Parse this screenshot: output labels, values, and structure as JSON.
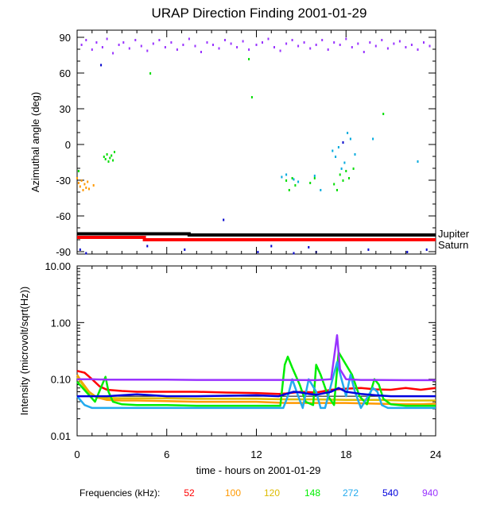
{
  "chart_data": [
    {
      "type": "scatter",
      "title": "URAP Direction Finding  2001-01-29",
      "ylabel": "Azimuthal angle (deg)",
      "xlim": [
        0,
        24
      ],
      "ylim": [
        -92,
        96
      ],
      "yticks": [
        "90",
        "60",
        "30",
        "0",
        "-30",
        "-60",
        "-90"
      ],
      "ytick_values": [
        90,
        60,
        30,
        0,
        -30,
        -60,
        -90
      ],
      "reference_lines": [
        {
          "name": "Jupiter",
          "color": "#000000",
          "x": [
            0,
            7.5,
            7.5,
            24
          ],
          "y": [
            -75,
            -75,
            -76,
            -76
          ]
        },
        {
          "name": "Saturn",
          "color": "#ff0000",
          "x": [
            0,
            4.5,
            4.5,
            24
          ],
          "y": [
            -78,
            -78,
            -80,
            -80
          ]
        }
      ],
      "series": [
        {
          "color": "#9933ff",
          "x": [
            0.3,
            0.6,
            1.0,
            1.3,
            1.7,
            2.0,
            2.4,
            2.8,
            3.1,
            3.5,
            3.9,
            4.3,
            4.7,
            5.1,
            5.5,
            5.9,
            6.3,
            6.7,
            7.1,
            7.5,
            7.9,
            8.3,
            8.7,
            9.1,
            9.5,
            9.9,
            10.3,
            10.7,
            11.1,
            11.5,
            12.0,
            12.4,
            12.8,
            13.2,
            13.6,
            14.0,
            14.4,
            14.8,
            15.2,
            15.6,
            16.0,
            16.4,
            16.8,
            17.2,
            17.6,
            18.0,
            18.4,
            18.8,
            19.2,
            19.6,
            20.0,
            20.4,
            20.8,
            21.2,
            21.6,
            22.0,
            22.4,
            22.8,
            23.2,
            23.6
          ],
          "y": [
            84,
            88,
            80,
            86,
            82,
            89,
            77,
            84,
            86,
            81,
            88,
            83,
            79,
            85,
            88,
            82,
            86,
            80,
            84,
            89,
            83,
            78,
            86,
            84,
            81,
            88,
            85,
            82,
            87,
            80,
            84,
            86,
            89,
            82,
            79,
            85,
            88,
            83,
            86,
            81,
            84,
            88,
            80,
            86,
            84,
            89,
            82,
            85,
            78,
            86,
            83,
            88,
            81,
            85,
            87,
            82,
            84,
            80,
            86,
            83
          ]
        },
        {
          "color": "#ff9900",
          "x": [
            0.0,
            0.1,
            0.2,
            0.3,
            0.4,
            0.5,
            0.6,
            0.7,
            0.8,
            1.1
          ],
          "y": [
            -28,
            -32,
            -35,
            -30,
            -38,
            -33,
            -36,
            -31,
            -37,
            -34
          ]
        },
        {
          "color": "#00dd00",
          "x": [
            0.1,
            1.8,
            1.9,
            2.0,
            2.1,
            2.2,
            2.3,
            2.4,
            2.5,
            4.9,
            11.5,
            11.7,
            14.0,
            14.2,
            14.4,
            14.6,
            15.6,
            15.9,
            17.2,
            17.4,
            17.6,
            17.8,
            18.0,
            18.2,
            18.5,
            20.5
          ],
          "y": [
            -22,
            -10,
            -12,
            -8,
            -14,
            -11,
            -9,
            -13,
            -6,
            60,
            72,
            40,
            -30,
            -38,
            -28,
            -34,
            -32,
            -28,
            -33,
            -38,
            -25,
            -30,
            -22,
            -28,
            -20,
            26
          ]
        },
        {
          "color": "#00aadd",
          "x": [
            13.7,
            14.0,
            14.5,
            14.8,
            15.9,
            16.3,
            17.1,
            17.3,
            17.5,
            17.7,
            17.9,
            18.1,
            18.3,
            18.6,
            19.8,
            22.8
          ],
          "y": [
            -27,
            -25,
            -29,
            -31,
            -26,
            -38,
            -5,
            -10,
            -2,
            -20,
            -15,
            10,
            5,
            -8,
            5,
            -14
          ]
        },
        {
          "color": "#0000cc",
          "x": [
            0.2,
            0.6,
            1.6,
            4.7,
            7.2,
            9.8,
            12.1,
            13.0,
            14.5,
            15.5,
            16.0,
            17.8,
            19.5,
            22.1,
            23.4
          ],
          "y": [
            -88,
            -91,
            67,
            -85,
            -88,
            -63,
            -90,
            -85,
            -91,
            -86,
            -90,
            2,
            -88,
            -90,
            -88
          ]
        }
      ]
    },
    {
      "type": "line",
      "ylabel": "Intensity (microvolt/sqrt(Hz))",
      "xlabel": "time - hours on 2001-01-29",
      "xlim": [
        0,
        24
      ],
      "ylim_log": [
        0.01,
        10
      ],
      "yticks": [
        "10.00",
        "1.00",
        "0.10",
        "0.01"
      ],
      "ytick_values": [
        10,
        1,
        0.1,
        0.01
      ],
      "xticks": [
        "0",
        "6",
        "12",
        "18",
        "24"
      ],
      "xtick_values": [
        0,
        6,
        12,
        18,
        24
      ],
      "reference_level": 0.05,
      "series": [
        {
          "name": "52",
          "color": "#ff0000",
          "x": [
            0,
            0.5,
            1,
            1.5,
            2,
            3,
            4,
            6,
            8,
            10,
            12,
            13.5,
            14,
            14.5,
            15,
            16,
            17,
            18,
            19,
            20,
            21,
            22,
            23,
            24
          ],
          "y": [
            0.14,
            0.13,
            0.1,
            0.075,
            0.065,
            0.062,
            0.06,
            0.06,
            0.06,
            0.058,
            0.057,
            0.055,
            0.056,
            0.058,
            0.06,
            0.058,
            0.065,
            0.068,
            0.07,
            0.066,
            0.065,
            0.07,
            0.065,
            0.07
          ]
        },
        {
          "name": "100",
          "color": "#ff9900",
          "x": [
            0,
            0.3,
            0.8,
            1.3,
            2,
            3,
            4,
            6,
            8,
            10,
            12,
            14,
            16,
            18,
            20,
            22,
            23,
            24
          ],
          "y": [
            0.12,
            0.09,
            0.06,
            0.048,
            0.043,
            0.042,
            0.042,
            0.041,
            0.04,
            0.04,
            0.04,
            0.038,
            0.038,
            0.038,
            0.037,
            0.036,
            0.036,
            0.037
          ]
        },
        {
          "name": "120",
          "color": "#ddbb00",
          "x": [
            0,
            0.3,
            0.7,
            1.2,
            1.8,
            3,
            4,
            6,
            8,
            10,
            12,
            14,
            16,
            18,
            20,
            22,
            24
          ],
          "y": [
            0.11,
            0.085,
            0.06,
            0.05,
            0.047,
            0.046,
            0.046,
            0.046,
            0.045,
            0.045,
            0.045,
            0.044,
            0.044,
            0.043,
            0.043,
            0.042,
            0.042
          ]
        },
        {
          "name": "148",
          "color": "#00ee00",
          "x": [
            0,
            0.6,
            1.2,
            1.9,
            2.1,
            2.4,
            3,
            4,
            6,
            8,
            10,
            12,
            13.6,
            13.9,
            14.1,
            14.4,
            14.9,
            15.3,
            15.8,
            16.0,
            16.3,
            16.8,
            17.2,
            17.5,
            18.0,
            18.4,
            18.9,
            19.4,
            19.9,
            20.2,
            20.5,
            21,
            22,
            23,
            24
          ],
          "y": [
            0.09,
            0.06,
            0.04,
            0.11,
            0.06,
            0.04,
            0.036,
            0.035,
            0.035,
            0.034,
            0.034,
            0.034,
            0.034,
            0.18,
            0.25,
            0.16,
            0.08,
            0.04,
            0.035,
            0.18,
            0.12,
            0.05,
            0.035,
            0.3,
            0.18,
            0.12,
            0.05,
            0.036,
            0.1,
            0.08,
            0.045,
            0.036,
            0.034,
            0.034,
            0.034
          ]
        },
        {
          "name": "272",
          "color": "#22aaee",
          "x": [
            0,
            0.5,
            1,
            2,
            3,
            4,
            6,
            8,
            10,
            12,
            13.8,
            14.1,
            14.4,
            14.8,
            15.1,
            15.5,
            16.0,
            16.3,
            16.6,
            17.1,
            17.4,
            17.7,
            18.0,
            18.3,
            18.6,
            19.0,
            19.8,
            20.1,
            20.4,
            20.8,
            22,
            23,
            24
          ],
          "y": [
            0.05,
            0.035,
            0.031,
            0.031,
            0.031,
            0.031,
            0.031,
            0.031,
            0.031,
            0.031,
            0.031,
            0.05,
            0.1,
            0.05,
            0.031,
            0.1,
            0.06,
            0.031,
            0.031,
            0.1,
            0.2,
            0.1,
            0.05,
            0.12,
            0.06,
            0.031,
            0.07,
            0.06,
            0.035,
            0.031,
            0.031,
            0.031,
            0.031
          ]
        },
        {
          "name": "540",
          "color": "#0000dd",
          "x": [
            0,
            1,
            2,
            3,
            4,
            5,
            6,
            8,
            10,
            12,
            13.5,
            14,
            14.5,
            15,
            15.5,
            16,
            17,
            17.5,
            18,
            19,
            20,
            21,
            22,
            23,
            24
          ],
          "y": [
            0.05,
            0.05,
            0.05,
            0.052,
            0.054,
            0.052,
            0.05,
            0.05,
            0.051,
            0.052,
            0.05,
            0.055,
            0.06,
            0.058,
            0.055,
            0.053,
            0.06,
            0.07,
            0.06,
            0.055,
            0.052,
            0.05,
            0.05,
            0.05,
            0.05
          ]
        },
        {
          "name": "940",
          "color": "#9933ff",
          "x": [
            0,
            1,
            2,
            4,
            6,
            8,
            10,
            12,
            14,
            16,
            17,
            17.4,
            17.6,
            18,
            19,
            20,
            22,
            24
          ],
          "y": [
            0.1,
            0.1,
            0.098,
            0.098,
            0.098,
            0.097,
            0.097,
            0.097,
            0.097,
            0.096,
            0.1,
            0.6,
            0.15,
            0.1,
            0.097,
            0.097,
            0.096,
            0.096
          ]
        }
      ],
      "legend_label": "Frequencies (kHz):"
    }
  ]
}
